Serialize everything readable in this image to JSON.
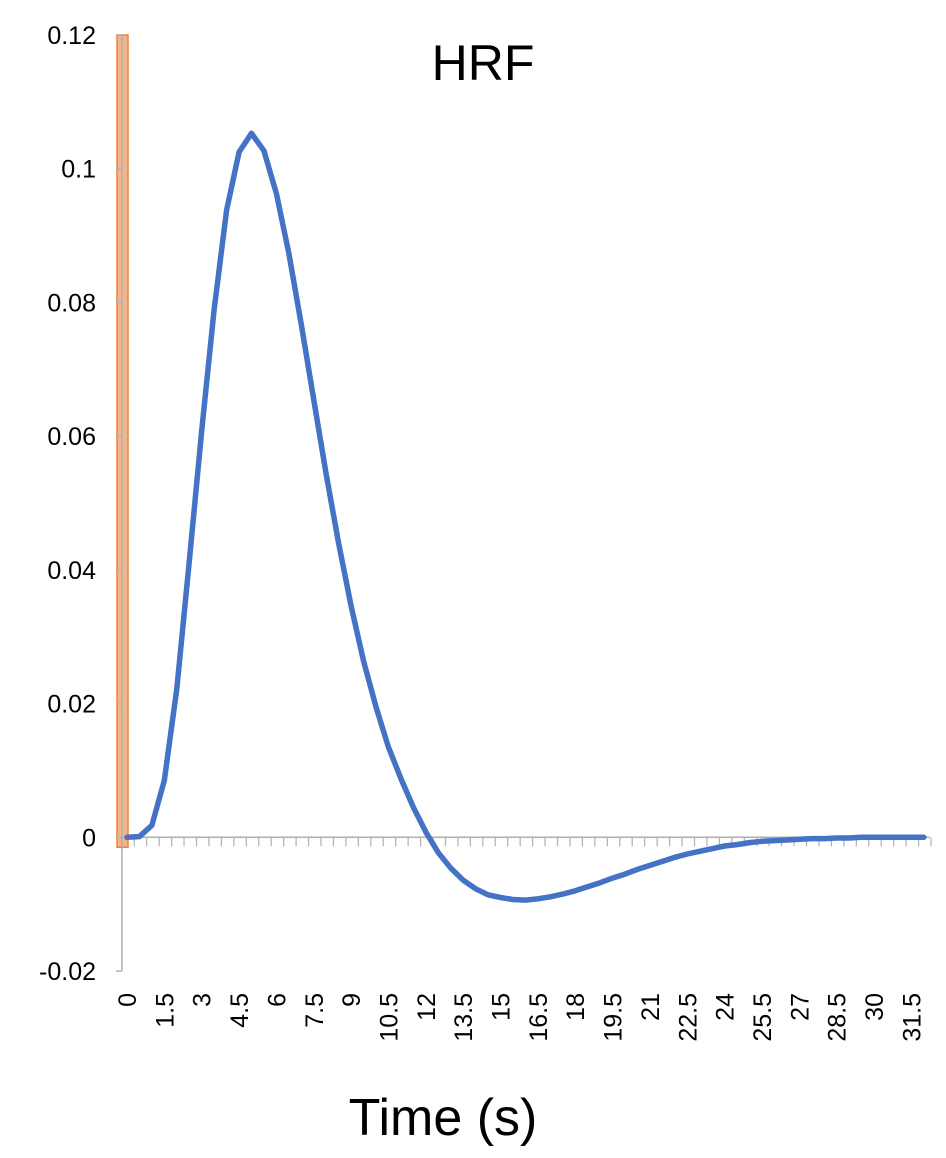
{
  "chart_data": {
    "type": "line",
    "title": "HRF",
    "xlabel": "Time (s)",
    "ylabel": "",
    "ylim": [
      -0.02,
      0.12
    ],
    "y_ticks": [
      "0.12",
      "0.1",
      "0.08",
      "0.06",
      "0.04",
      "0.02",
      "0",
      "-0.02"
    ],
    "y_tick_values": [
      0.12,
      0.1,
      0.08,
      0.06,
      0.04,
      0.02,
      0,
      -0.02
    ],
    "x_ticks": [
      "0",
      "1.5",
      "3",
      "4.5",
      "6",
      "7.5",
      "9",
      "10.5",
      "12",
      "13.5",
      "15",
      "16.5",
      "18",
      "19.5",
      "21",
      "22.5",
      "24",
      "25.5",
      "27",
      "28.5",
      "30",
      "31.5"
    ],
    "x_tick_values": [
      0,
      1.5,
      3,
      4.5,
      6,
      7.5,
      9,
      10.5,
      12,
      13.5,
      15,
      16.5,
      18,
      19.5,
      21,
      22.5,
      24,
      25.5,
      27,
      28.5,
      30,
      31.5
    ],
    "x_step": 0.5,
    "x_max": 32,
    "grid": false,
    "series": [
      {
        "color": "#4472c4",
        "x": [
          0,
          0.5,
          1,
          1.5,
          2,
          2.5,
          3,
          3.5,
          4,
          4.5,
          5,
          5.5,
          6,
          6.5,
          7,
          7.5,
          8,
          8.5,
          9,
          9.5,
          10,
          10.5,
          11,
          11.5,
          12,
          12.5,
          13,
          13.5,
          14,
          14.5,
          15,
          15.5,
          16,
          16.5,
          17,
          17.5,
          18,
          18.5,
          19,
          19.5,
          20,
          20.5,
          21,
          21.5,
          22,
          22.5,
          23,
          23.5,
          24,
          24.5,
          25,
          25.5,
          26,
          26.5,
          27,
          27.5,
          28,
          28.5,
          29,
          29.5,
          30,
          30.5,
          31,
          31.5,
          32
        ],
        "values": [
          0,
          0.0001,
          0.0018,
          0.0085,
          0.0222,
          0.0413,
          0.0608,
          0.0789,
          0.0938,
          0.1025,
          0.1053,
          0.1027,
          0.0963,
          0.0873,
          0.0767,
          0.0654,
          0.0543,
          0.044,
          0.0346,
          0.0264,
          0.0195,
          0.0135,
          0.0088,
          0.0045,
          0.0008,
          -0.0023,
          -0.0046,
          -0.0064,
          -0.0077,
          -0.0086,
          -0.009,
          -0.0093,
          -0.0094,
          -0.0092,
          -0.0089,
          -0.0085,
          -0.008,
          -0.0074,
          -0.0068,
          -0.0061,
          -0.0055,
          -0.0048,
          -0.0042,
          -0.0036,
          -0.003,
          -0.0025,
          -0.0021,
          -0.0017,
          -0.0013,
          -0.0011,
          -0.0008,
          -0.0006,
          -0.0005,
          -0.0004,
          -0.0003,
          -0.0002,
          -0.0002,
          -0.0001,
          -0.0001,
          0,
          0,
          0,
          0,
          0,
          0
        ]
      }
    ],
    "highlight_bar": {
      "color": "#f4b183",
      "border": "#ed7d31",
      "y_from": -0.0015,
      "y_to": 0.12
    }
  }
}
